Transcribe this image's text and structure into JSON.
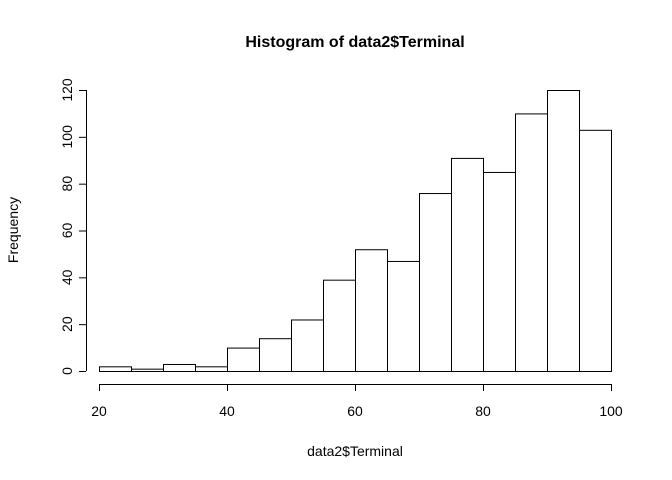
{
  "chart_data": {
    "type": "bar",
    "title": "Histogram of data2$Terminal",
    "xlabel": "data2$Terminal",
    "ylabel": "Frequency",
    "bins": [
      {
        "start": 20,
        "end": 25,
        "value": 2
      },
      {
        "start": 25,
        "end": 30,
        "value": 1
      },
      {
        "start": 30,
        "end": 35,
        "value": 3
      },
      {
        "start": 35,
        "end": 40,
        "value": 2
      },
      {
        "start": 40,
        "end": 45,
        "value": 10
      },
      {
        "start": 45,
        "end": 50,
        "value": 14
      },
      {
        "start": 50,
        "end": 55,
        "value": 22
      },
      {
        "start": 55,
        "end": 60,
        "value": 39
      },
      {
        "start": 60,
        "end": 65,
        "value": 52
      },
      {
        "start": 65,
        "end": 70,
        "value": 47
      },
      {
        "start": 70,
        "end": 75,
        "value": 76
      },
      {
        "start": 75,
        "end": 80,
        "value": 91
      },
      {
        "start": 80,
        "end": 85,
        "value": 85
      },
      {
        "start": 85,
        "end": 90,
        "value": 110
      },
      {
        "start": 90,
        "end": 95,
        "value": 120
      },
      {
        "start": 95,
        "end": 100,
        "value": 103
      }
    ],
    "xlim": [
      20,
      100
    ],
    "ylim": [
      0,
      120
    ],
    "xticks": [
      20,
      40,
      60,
      80,
      100
    ],
    "yticks": [
      0,
      20,
      40,
      60,
      80,
      100,
      120
    ],
    "grid": false
  }
}
